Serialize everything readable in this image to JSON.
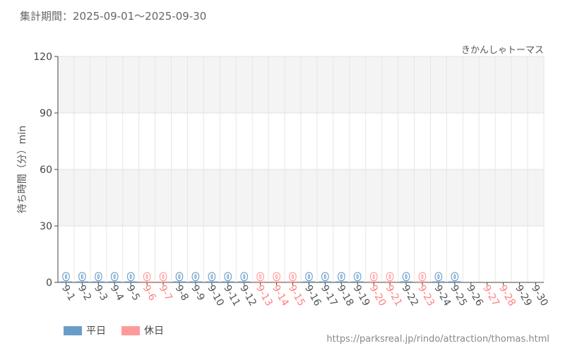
{
  "period_label": "集計期間：2025-09-01～2025-09-30",
  "attraction_name": "きかんしゃトーマス",
  "source_url": "https://parksreal.jp/rindo/attraction/thomas.html",
  "legend": [
    {
      "label": "平日",
      "color": "#6a9cc8"
    },
    {
      "label": "休日",
      "color": "#ff9a9a"
    }
  ],
  "chart_data": {
    "type": "bar",
    "ylabel": "待ち時間（分）min",
    "ylim": [
      0,
      120
    ],
    "yticks": [
      0,
      30,
      60,
      90,
      120
    ],
    "grid": true,
    "categories": [
      "9-1",
      "9-2",
      "9-3",
      "9-4",
      "9-5",
      "9-6",
      "9-7",
      "9-8",
      "9-9",
      "9-10",
      "9-11",
      "9-12",
      "9-13",
      "9-14",
      "9-15",
      "9-16",
      "9-17",
      "9-18",
      "9-19",
      "9-20",
      "9-21",
      "9-22",
      "9-23",
      "9-24",
      "9-25",
      "9-26",
      "9-27",
      "9-28",
      "9-29",
      "9-30"
    ],
    "day_type": [
      "weekday",
      "weekday",
      "weekday",
      "weekday",
      "weekday",
      "holiday",
      "holiday",
      "weekday",
      "weekday",
      "weekday",
      "weekday",
      "weekday",
      "holiday",
      "holiday",
      "holiday",
      "weekday",
      "weekday",
      "weekday",
      "weekday",
      "holiday",
      "holiday",
      "weekday",
      "holiday",
      "weekday",
      "weekday",
      "weekday",
      "holiday",
      "holiday",
      "weekday",
      "weekday"
    ],
    "values": [
      0,
      0,
      0,
      0,
      0,
      0,
      0,
      0,
      0,
      0,
      0,
      0,
      0,
      0,
      0,
      0,
      0,
      0,
      0,
      0,
      0,
      0,
      0,
      0,
      0,
      null,
      null,
      null,
      null,
      null
    ],
    "value_labels": [
      "0",
      "0",
      "0",
      "0",
      "0",
      "0",
      "0",
      "0",
      "0",
      "0",
      "0",
      "0",
      "0",
      "0",
      "0",
      "0",
      "0",
      "0",
      "0",
      "0",
      "0",
      "0",
      "0",
      "0",
      "0",
      "",
      "",
      "",
      "",
      ""
    ],
    "colors": {
      "weekday": "#6a9cc8",
      "holiday": "#ff9a9a",
      "weekday_tick": "#555555",
      "holiday_tick": "#ff8080"
    }
  }
}
